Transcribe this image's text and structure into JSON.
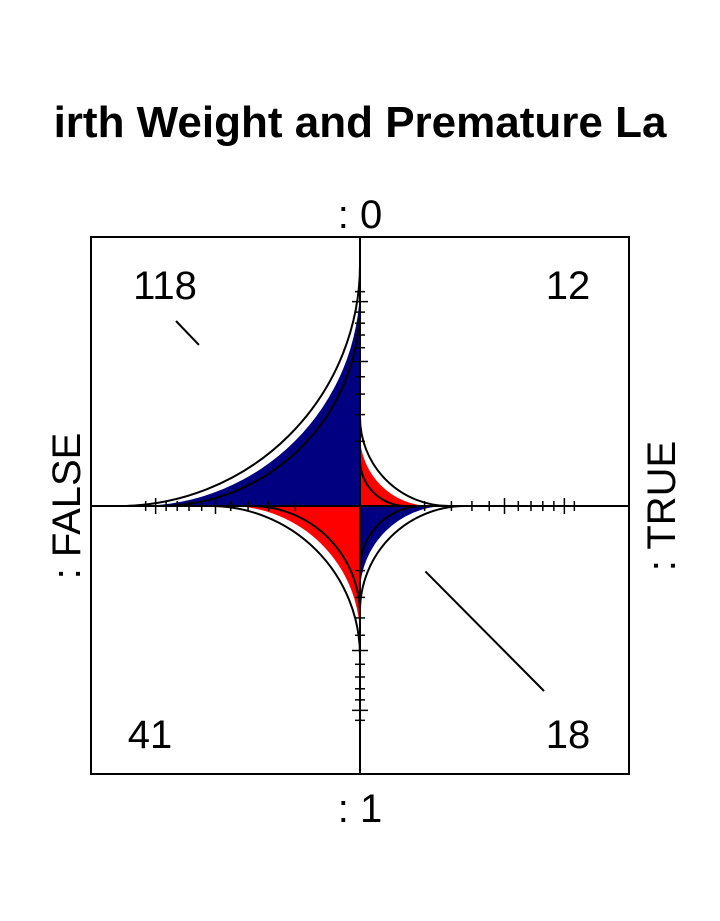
{
  "chart_data": {
    "type": "fourfold",
    "title": "irth Weight and Premature La",
    "top_label": ": 0",
    "bottom_label": ": 1",
    "left_label": ": FALSE",
    "right_label": ": TRUE",
    "cells": [
      {
        "position": "top-left",
        "count": 118,
        "color": "#000080",
        "shading": "positive"
      },
      {
        "position": "top-right",
        "count": 12,
        "color": "#FF0000",
        "shading": "negative"
      },
      {
        "position": "bottom-left",
        "count": 41,
        "color": "#FF0000",
        "shading": "negative"
      },
      {
        "position": "bottom-right",
        "count": 18,
        "color": "#000080",
        "shading": "positive"
      }
    ],
    "confidence_rings": true
  }
}
